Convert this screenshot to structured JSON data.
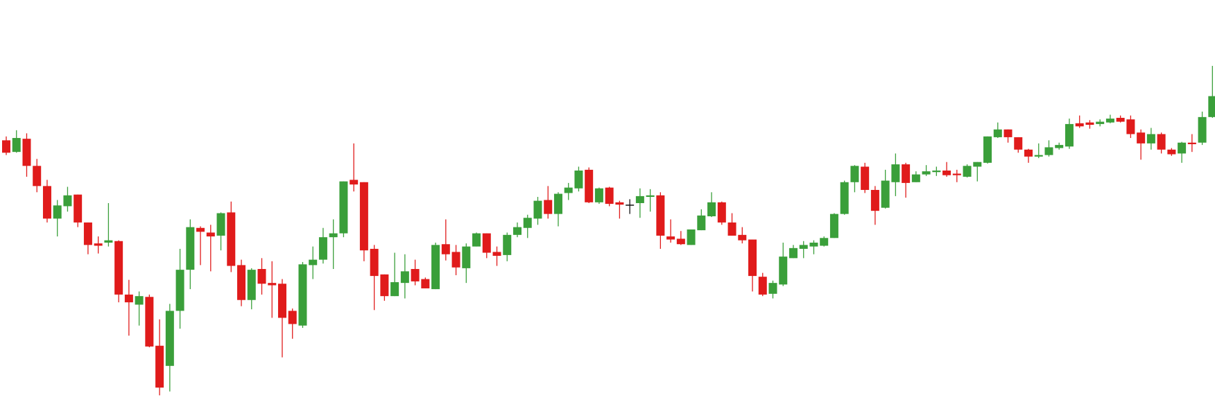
{
  "chart_data": {
    "type": "candlestick",
    "up_color": "#3a9f3a",
    "down_color": "#e01b1b",
    "flat_color": "#111111",
    "ylim": [
      0,
      516
    ],
    "open": [
      335,
      320,
      337,
      302,
      276,
      234,
      250,
      265,
      229,
      202,
      203,
      205,
      136,
      123,
      133,
      70,
      44,
      115,
      168,
      222,
      216,
      212,
      242,
      174,
      129,
      169,
      151,
      150,
      115,
      96,
      174,
      181,
      210,
      215,
      284,
      281,
      195,
      162,
      134,
      151,
      169,
      156,
      143,
      201,
      191,
      170,
      198,
      215,
      191,
      187,
      213,
      222,
      234,
      258,
      240,
      267,
      273,
      297,
      255,
      274,
      255,
      252,
      254,
      262,
      264,
      211,
      208,
      200,
      219,
      237,
      255,
      229,
      213,
      207,
      159,
      137,
      149,
      183,
      195,
      198,
      199,
      209,
      240,
      281,
      301,
      271,
      248,
      281,
      304,
      281,
      291,
      294,
      296,
      292,
      288,
      301,
      306,
      339,
      349,
      339,
      323,
      314,
      316,
      325,
      327,
      357,
      358,
      356,
      358,
      364,
      362,
      345,
      331,
      343,
      323,
      318,
      332,
      332,
      365
    ],
    "high": [
      340,
      348,
      344,
      311,
      284,
      258,
      275,
      265,
      229,
      211,
      254,
      206,
      155,
      140,
      136,
      104,
      124,
      195,
      233,
      224,
      226,
      242,
      256,
      181,
      170,
      183,
      179,
      156,
      118,
      178,
      198,
      222,
      233,
      282,
      331,
      281,
      200,
      162,
      190,
      188,
      181,
      158,
      203,
      233,
      200,
      202,
      216,
      215,
      198,
      216,
      229,
      239,
      262,
      276,
      268,
      280,
      301,
      300,
      274,
      275,
      257,
      259,
      273,
      272,
      268,
      233,
      218,
      220,
      246,
      268,
      256,
      241,
      223,
      207,
      164,
      154,
      203,
      200,
      205,
      206,
      211,
      241,
      283,
      303,
      306,
      276,
      297,
      318,
      306,
      295,
      303,
      301,
      307,
      297,
      304,
      307,
      340,
      358,
      349,
      339,
      324,
      331,
      335,
      332,
      363,
      367,
      361,
      362,
      368,
      367,
      367,
      349,
      351,
      345,
      325,
      333,
      343,
      372,
      431
    ],
    "low": [
      316,
      319,
      288,
      268,
      229,
      211,
      243,
      223,
      188,
      189,
      198,
      126,
      83,
      96,
      68,
      6,
      11,
      92,
      143,
      174,
      166,
      193,
      165,
      121,
      117,
      136,
      106,
      55,
      79,
      93,
      156,
      176,
      169,
      210,
      269,
      179,
      116,
      128,
      134,
      131,
      148,
      144,
      143,
      180,
      161,
      151,
      198,
      183,
      173,
      179,
      210,
      209,
      226,
      234,
      224,
      258,
      269,
      254,
      253,
      250,
      234,
      240,
      235,
      243,
      195,
      203,
      200,
      200,
      219,
      236,
      226,
      212,
      202,
      140,
      134,
      131,
      147,
      183,
      183,
      188,
      198,
      209,
      239,
      268,
      267,
      226,
      247,
      263,
      261,
      281,
      289,
      289,
      288,
      281,
      287,
      282,
      305,
      338,
      332,
      319,
      306,
      312,
      314,
      323,
      324,
      351,
      350,
      353,
      357,
      358,
      338,
      310,
      323,
      318,
      315,
      306,
      320,
      329,
      364
    ],
    "close": [
      319,
      338,
      302,
      276,
      234,
      251,
      264,
      229,
      200,
      199,
      206,
      136,
      126,
      134,
      69,
      16,
      115,
      168,
      223,
      217,
      211,
      241,
      173,
      129,
      168,
      150,
      148,
      106,
      98,
      175,
      181,
      210,
      215,
      282,
      278,
      193,
      160,
      134,
      152,
      166,
      153,
      144,
      200,
      188,
      171,
      198,
      215,
      190,
      186,
      213,
      223,
      235,
      257,
      240,
      266,
      274,
      296,
      255,
      273,
      253,
      252,
      252,
      263,
      264,
      212,
      207,
      201,
      220,
      238,
      255,
      229,
      212,
      206,
      160,
      136,
      151,
      185,
      196,
      200,
      203,
      209,
      240,
      281,
      302,
      271,
      244,
      283,
      304,
      280,
      291,
      295,
      296,
      290,
      290,
      302,
      307,
      340,
      349,
      339,
      323,
      314,
      316,
      326,
      329,
      356,
      353,
      355,
      359,
      363,
      359,
      343,
      331,
      343,
      323,
      317,
      332,
      330,
      365,
      392
    ]
  }
}
